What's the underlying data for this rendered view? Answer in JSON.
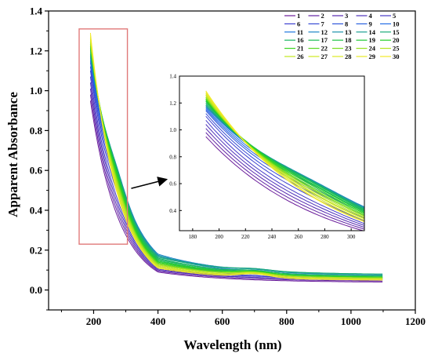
{
  "chart_data": {
    "type": "line",
    "xlabel": "Wavelength (nm)",
    "ylabel": "Apparent Absorbance",
    "xlim": [
      60,
      1200
    ],
    "ylim": [
      -0.1,
      1.4
    ],
    "xticks": [
      "200",
      "400",
      "600",
      "800",
      "1000",
      "1200"
    ],
    "yticks": [
      "0.0",
      "0.2",
      "0.4",
      "0.6",
      "0.8",
      "1.0",
      "1.2",
      "1.4"
    ],
    "x_start": 190,
    "x_end": 1100,
    "series_names": [
      "1",
      "2",
      "3",
      "4",
      "5",
      "6",
      "7",
      "8",
      "9",
      "10",
      "11",
      "12",
      "13",
      "14",
      "15",
      "16",
      "17",
      "18",
      "19",
      "20",
      "21",
      "22",
      "23",
      "24",
      "25",
      "26",
      "27",
      "28",
      "29",
      "30"
    ],
    "series_peak_at_190nm": [
      0.95,
      0.98,
      1.01,
      1.04,
      1.07,
      1.1,
      1.12,
      1.14,
      1.15,
      1.16,
      1.17,
      1.17,
      1.18,
      1.18,
      1.19,
      1.2,
      1.21,
      1.21,
      1.22,
      1.22,
      1.23,
      1.23,
      1.24,
      1.24,
      1.25,
      1.26,
      1.26,
      1.27,
      1.28,
      1.29
    ],
    "series_value_at_400nm": [
      0.09,
      0.095,
      0.1,
      0.105,
      0.11,
      0.12,
      0.13,
      0.14,
      0.15,
      0.16,
      0.17,
      0.18,
      0.175,
      0.17,
      0.165,
      0.16,
      0.155,
      0.15,
      0.145,
      0.14,
      0.14,
      0.135,
      0.13,
      0.13,
      0.125,
      0.12,
      0.12,
      0.115,
      0.11,
      0.11
    ],
    "series_value_at_1100nm": [
      0.04,
      0.045,
      0.05,
      0.05,
      0.055,
      0.055,
      0.06,
      0.06,
      0.065,
      0.065,
      0.07,
      0.075,
      0.075,
      0.08,
      0.08,
      0.07,
      0.07,
      0.065,
      0.065,
      0.065,
      0.065,
      0.06,
      0.06,
      0.06,
      0.06,
      0.055,
      0.055,
      0.055,
      0.05,
      0.05
    ],
    "legend_position": "top-right",
    "highlight_box_x_range": [
      155,
      305
    ],
    "highlight_box_y_range": [
      0.23,
      1.31
    ],
    "inset": {
      "xlim": [
        170,
        310
      ],
      "ylim": [
        0.25,
        1.4
      ],
      "xticks": [
        "180",
        "200",
        "220",
        "240",
        "260",
        "280",
        "300"
      ],
      "yticks": [
        "0.4",
        "0.6",
        "0.8",
        "1.0",
        "1.2",
        "1.4"
      ]
    }
  },
  "colors": {
    "series_gradient": [
      "#6a1b9a",
      "#3d3ecf",
      "#1e73e8",
      "#19b36b",
      "#22d11f",
      "#b7e61b",
      "#f4ea28"
    ],
    "highlight_box": "#e07a7a",
    "axis": "#000000"
  }
}
